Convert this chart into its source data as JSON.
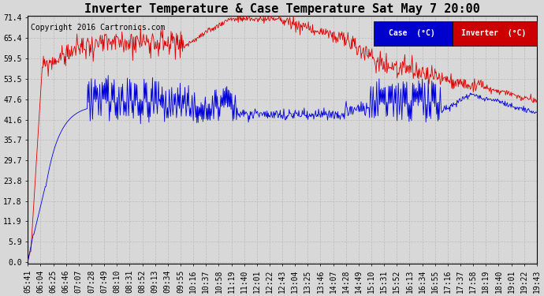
{
  "title": "Inverter Temperature & Case Temperature Sat May 7 20:00",
  "copyright": "Copyright 2016 Cartronics.com",
  "background_color": "#d8d8d8",
  "plot_bg_color": "#d8d8d8",
  "grid_color": "#bbbbbb",
  "y_ticks": [
    0.0,
    5.9,
    11.9,
    17.8,
    23.8,
    29.7,
    35.7,
    41.6,
    47.6,
    53.5,
    59.5,
    65.4,
    71.4
  ],
  "y_min": 0.0,
  "y_max": 71.4,
  "x_labels": [
    "05:41",
    "06:04",
    "06:25",
    "06:46",
    "07:07",
    "07:28",
    "07:49",
    "08:10",
    "08:31",
    "08:52",
    "09:13",
    "09:34",
    "09:55",
    "10:16",
    "10:37",
    "10:58",
    "11:19",
    "11:40",
    "12:01",
    "12:22",
    "12:43",
    "13:04",
    "13:25",
    "13:46",
    "14:07",
    "14:28",
    "14:49",
    "15:10",
    "15:31",
    "15:52",
    "16:13",
    "16:34",
    "16:55",
    "17:16",
    "17:37",
    "17:58",
    "18:19",
    "18:40",
    "19:01",
    "19:22",
    "19:43"
  ],
  "legend_case_color": "#0000cc",
  "legend_inverter_color": "#cc0000",
  "legend_case_label": "Case  (°C)",
  "legend_inverter_label": "Inverter  (°C)",
  "case_color": "#0000dd",
  "inverter_color": "#dd0000",
  "title_fontsize": 11,
  "copyright_fontsize": 7,
  "tick_fontsize": 7
}
